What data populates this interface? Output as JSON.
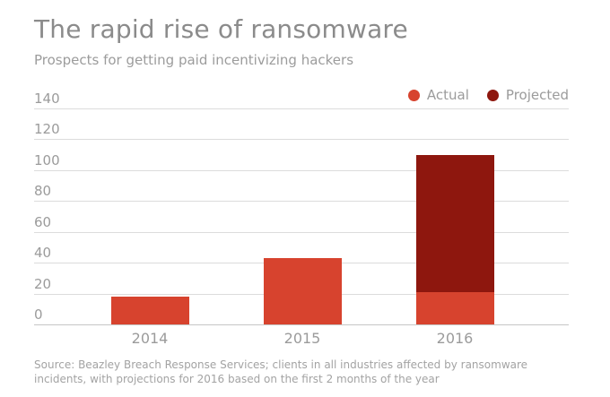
{
  "header": {
    "title": "The rapid rise of ransomware",
    "subtitle": "Prospects for getting paid incentivizing hackers"
  },
  "legend": {
    "items": [
      {
        "label": "Actual",
        "color": "#d7432e"
      },
      {
        "label": "Projected",
        "color": "#8e170e"
      }
    ]
  },
  "footer": {
    "source_line1": "Source: Beazley Breach Response Services; clients in all industries affected by ransomware",
    "source_line2": "incidents, with projections for 2016 based on the first 2 months of the year"
  },
  "colors": {
    "actual_red": "#d7432e",
    "projected_dark_red": "#8e170e",
    "gridline": "#dcdcdc",
    "zero_line": "#c6c6c6",
    "text_gray": "#9b9b9b",
    "title_gray": "#8b8b8b",
    "background": "#ffffff"
  },
  "chart_data": {
    "type": "bar",
    "stacked": true,
    "title": "The rapid rise of ransomware",
    "subtitle": "Prospects for getting paid incentivizing hackers",
    "categories": [
      "2014",
      "2015",
      "2016"
    ],
    "series": [
      {
        "name": "Actual",
        "color": "#d7432e",
        "values": [
          18,
          43,
          21
        ]
      },
      {
        "name": "Projected",
        "color": "#8e170e",
        "values": [
          0,
          0,
          89
        ]
      }
    ],
    "stacked_totals": [
      18,
      43,
      110
    ],
    "xlabel": "",
    "ylabel": "",
    "ylim": [
      0,
      140
    ],
    "yticks": [
      0,
      20,
      40,
      60,
      80,
      100,
      120,
      140
    ],
    "grid": "horizontal",
    "legend_position": "top-right"
  }
}
